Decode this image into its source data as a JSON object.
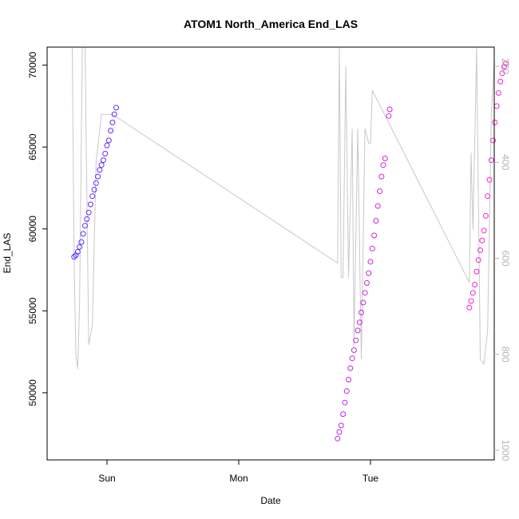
{
  "chart_data": {
    "type": "scatter",
    "title": "ATOM1 North_America End_LAS",
    "xlabel": "Date",
    "ylabel": "End_LAS",
    "x_ticks": [
      "Sun",
      "Mon",
      "Tue"
    ],
    "y_ticks": [
      50000,
      55000,
      60000,
      65000,
      70000
    ],
    "y2_ticks": [
      200,
      400,
      600,
      800,
      1000
    ],
    "ylim": [
      45900,
      71100
    ],
    "y2lim": [
      1020,
      160
    ],
    "grid": false,
    "legend": "none",
    "colors": {
      "early": "#5a2cff",
      "late": "#ff22d2",
      "secondary_line": "#c8c8c8",
      "right_axis": "#b3b3b3"
    },
    "points_color_range": [
      "#5a2cff",
      "#ff22d2"
    ],
    "series": [
      {
        "points": [
          {
            "x": "Sat 18:00",
            "y": 58300
          },
          {
            "x": "Sat 18:20",
            "y": 58400
          },
          {
            "x": "Sat 18:40",
            "y": 58600
          },
          {
            "x": "Sat 19:00",
            "y": 58900
          },
          {
            "x": "Sat 19:20",
            "y": 59200
          },
          {
            "x": "Sat 19:40",
            "y": 59700
          },
          {
            "x": "Sat 20:00",
            "y": 60200
          },
          {
            "x": "Sat 20:20",
            "y": 60600
          },
          {
            "x": "Sat 20:40",
            "y": 61000
          },
          {
            "x": "Sat 21:00",
            "y": 61500
          },
          {
            "x": "Sat 21:20",
            "y": 62000
          },
          {
            "x": "Sat 21:40",
            "y": 62400
          },
          {
            "x": "Sat 22:00",
            "y": 62800
          },
          {
            "x": "Sat 22:20",
            "y": 63200
          },
          {
            "x": "Sat 22:40",
            "y": 63600
          },
          {
            "x": "Sat 23:00",
            "y": 63900
          },
          {
            "x": "Sat 23:20",
            "y": 64200
          },
          {
            "x": "Sat 23:40",
            "y": 64600
          },
          {
            "x": "Sun 00:00",
            "y": 65100
          },
          {
            "x": "Sun 00:20",
            "y": 65400
          },
          {
            "x": "Sun 00:40",
            "y": 66000
          },
          {
            "x": "Sun 01:00",
            "y": 66500
          },
          {
            "x": "Sun 01:20",
            "y": 67000
          },
          {
            "x": "Sun 01:40",
            "y": 67400
          },
          {
            "x": "Mon 18:00",
            "y": 47200
          },
          {
            "x": "Mon 18:20",
            "y": 47600
          },
          {
            "x": "Mon 18:40",
            "y": 48000
          },
          {
            "x": "Mon 19:00",
            "y": 48700
          },
          {
            "x": "Mon 19:20",
            "y": 49400
          },
          {
            "x": "Mon 19:40",
            "y": 50100
          },
          {
            "x": "Mon 20:00",
            "y": 50800
          },
          {
            "x": "Mon 20:20",
            "y": 51500
          },
          {
            "x": "Mon 20:40",
            "y": 52100
          },
          {
            "x": "Mon 21:00",
            "y": 52600
          },
          {
            "x": "Mon 21:20",
            "y": 53200
          },
          {
            "x": "Mon 21:40",
            "y": 53800
          },
          {
            "x": "Mon 22:00",
            "y": 54300
          },
          {
            "x": "Mon 22:20",
            "y": 54900
          },
          {
            "x": "Mon 22:40",
            "y": 55500
          },
          {
            "x": "Mon 23:00",
            "y": 56100
          },
          {
            "x": "Mon 23:20",
            "y": 56700
          },
          {
            "x": "Mon 23:40",
            "y": 57300
          },
          {
            "x": "Tue 00:00",
            "y": 58000
          },
          {
            "x": "Tue 00:20",
            "y": 58800
          },
          {
            "x": "Tue 00:40",
            "y": 59600
          },
          {
            "x": "Tue 01:00",
            "y": 60500
          },
          {
            "x": "Tue 01:20",
            "y": 61400
          },
          {
            "x": "Tue 01:40",
            "y": 62300
          },
          {
            "x": "Tue 02:00",
            "y": 63200
          },
          {
            "x": "Tue 02:20",
            "y": 63900
          },
          {
            "x": "Tue 02:40",
            "y": 64300
          },
          {
            "x": "Tue 03:20",
            "y": 66900
          },
          {
            "x": "Tue 03:30",
            "y": 67300
          },
          {
            "x": "Tue 18:00",
            "y": 55200
          },
          {
            "x": "Tue 18:20",
            "y": 55600
          },
          {
            "x": "Tue 18:40",
            "y": 56100
          },
          {
            "x": "Tue 19:00",
            "y": 56600
          },
          {
            "x": "Tue 19:20",
            "y": 57400
          },
          {
            "x": "Tue 19:40",
            "y": 58100
          },
          {
            "x": "Tue 20:00",
            "y": 58700
          },
          {
            "x": "Tue 20:20",
            "y": 59300
          },
          {
            "x": "Tue 20:40",
            "y": 59900
          },
          {
            "x": "Tue 21:00",
            "y": 60800
          },
          {
            "x": "Tue 21:20",
            "y": 62000
          },
          {
            "x": "Tue 21:40",
            "y": 63000
          },
          {
            "x": "Tue 22:00",
            "y": 64200
          },
          {
            "x": "Tue 22:20",
            "y": 65400
          },
          {
            "x": "Tue 22:40",
            "y": 66500
          },
          {
            "x": "Tue 23:00",
            "y": 67500
          },
          {
            "x": "Tue 23:20",
            "y": 68300
          },
          {
            "x": "Tue 23:40",
            "y": 69000
          },
          {
            "x": "Wed 00:00",
            "y": 69500
          },
          {
            "x": "Wed 00:20",
            "y": 69900
          },
          {
            "x": "Wed 00:40",
            "y": 70100
          }
        ]
      }
    ],
    "secondary_line": [
      {
        "x": "Sat 17:40",
        "y": 160
      },
      {
        "x": "Sat 18:00",
        "y": 600
      },
      {
        "x": "Sat 18:20",
        "y": 800
      },
      {
        "x": "Sat 18:40",
        "y": 830
      },
      {
        "x": "Sat 19:00",
        "y": 700
      },
      {
        "x": "Sat 19:30",
        "y": 160
      },
      {
        "x": "Sat 20:00",
        "y": 160
      },
      {
        "x": "Sat 20:40",
        "y": 780
      },
      {
        "x": "Sat 21:20",
        "y": 740
      },
      {
        "x": "Sat 22:00",
        "y": 400
      },
      {
        "x": "Sat 23:00",
        "y": 300
      },
      {
        "x": "Sun 00:00",
        "y": 300
      },
      {
        "x": "Sun 01:00",
        "y": 300
      },
      {
        "x": "Mon 18:00",
        "y": 610
      },
      {
        "x": "Mon 18:20",
        "y": 160
      },
      {
        "x": "Mon 18:40",
        "y": 640
      },
      {
        "x": "Mon 19:00",
        "y": 640
      },
      {
        "x": "Mon 19:30",
        "y": 200
      },
      {
        "x": "Mon 20:00",
        "y": 640
      },
      {
        "x": "Mon 20:40",
        "y": 330
      },
      {
        "x": "Mon 21:00",
        "y": 780
      },
      {
        "x": "Mon 21:40",
        "y": 330
      },
      {
        "x": "Mon 22:20",
        "y": 810
      },
      {
        "x": "Mon 23:00",
        "y": 330
      },
      {
        "x": "Mon 23:40",
        "y": 360
      },
      {
        "x": "Tue 00:00",
        "y": 360
      },
      {
        "x": "Tue 00:20",
        "y": 250
      },
      {
        "x": "Tue 18:00",
        "y": 650
      },
      {
        "x": "Tue 18:20",
        "y": 380
      },
      {
        "x": "Tue 18:40",
        "y": 540
      },
      {
        "x": "Tue 19:00",
        "y": 360
      },
      {
        "x": "Tue 19:20",
        "y": 160
      },
      {
        "x": "Tue 20:00",
        "y": 810
      },
      {
        "x": "Tue 20:40",
        "y": 820
      },
      {
        "x": "Tue 21:20",
        "y": 750
      },
      {
        "x": "Tue 22:00",
        "y": 300
      },
      {
        "x": "Tue 22:40",
        "y": 160
      }
    ]
  }
}
